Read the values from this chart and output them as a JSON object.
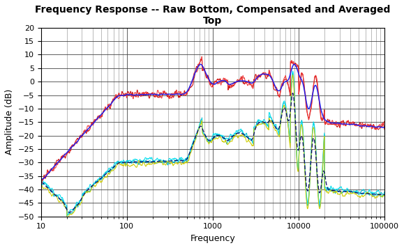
{
  "title_line1": "Frequency Response -- Raw Bottom, Compensated and Averaged",
  "title_line2": "Top",
  "xlabel": "Frequency",
  "ylabel": "Amplitude (dB)",
  "xlim": [
    10,
    100000
  ],
  "ylim": [
    -50,
    20
  ],
  "yticks": [
    20,
    15,
    10,
    5,
    0,
    -5,
    -10,
    -15,
    -20,
    -25,
    -30,
    -35,
    -40,
    -45,
    -50
  ],
  "background_color": "#ffffff",
  "title_fontsize": 10,
  "axis_label_fontsize": 9,
  "tick_fontsize": 8,
  "colors": {
    "red1": "#cc0000",
    "red2": "#ee3333",
    "blue_avg": "#1a1aee",
    "cyan1": "#00bbcc",
    "cyan2": "#00ddee",
    "yellow": "#cccc00",
    "dark_dashed": "#000066"
  }
}
